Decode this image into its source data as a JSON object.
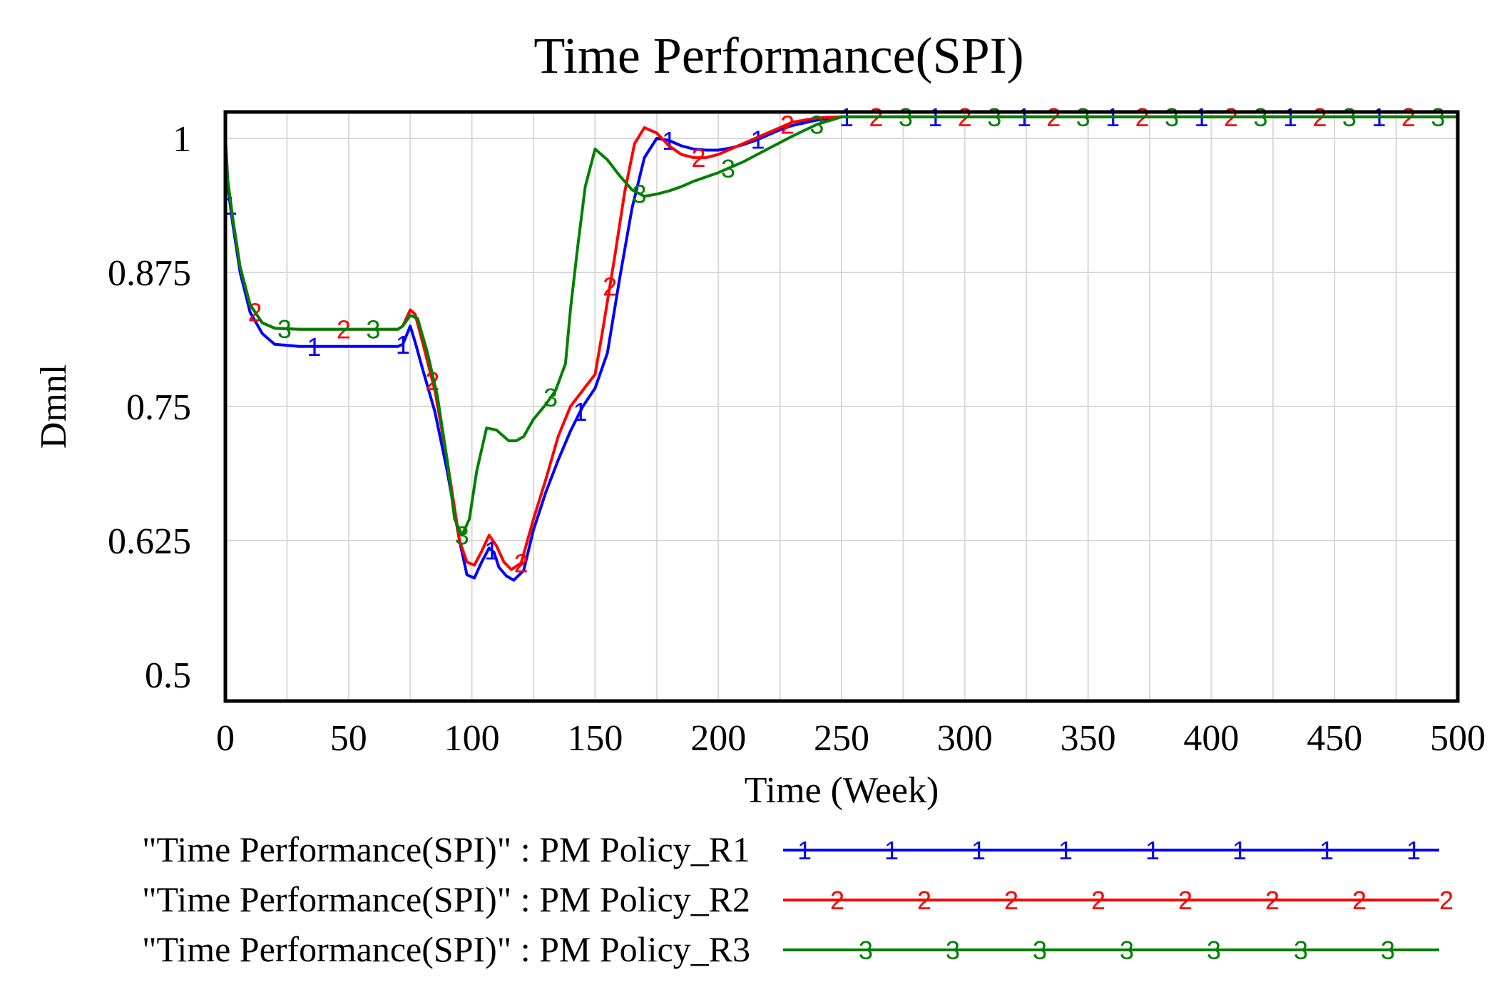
{
  "chart_data": {
    "type": "line",
    "title": "Time Performance(SPI)",
    "xlabel": "Time (Week)",
    "ylabel": "Dmnl",
    "xlim": [
      0,
      500
    ],
    "ylim": [
      0.5,
      1.0
    ],
    "x_ticks": [
      0,
      50,
      100,
      150,
      200,
      250,
      300,
      350,
      400,
      450,
      500
    ],
    "y_ticks": [
      0.5,
      0.625,
      0.75,
      0.875,
      1
    ],
    "y_tick_labels": [
      "0.5",
      "0.625",
      "0.75",
      "0.875",
      "1"
    ],
    "grid": true,
    "legend_position": "bottom",
    "series": [
      {
        "name": "\"Time Performance(SPI)\" : PM Policy_R1",
        "marker": "1",
        "color": "#0000ff",
        "points": [
          [
            0,
            1.0
          ],
          [
            1,
            0.955
          ],
          [
            3,
            0.92
          ],
          [
            6,
            0.875
          ],
          [
            10,
            0.838
          ],
          [
            15,
            0.818
          ],
          [
            20,
            0.808
          ],
          [
            30,
            0.806
          ],
          [
            50,
            0.806
          ],
          [
            70,
            0.806
          ],
          [
            72,
            0.808
          ],
          [
            75,
            0.825
          ],
          [
            77,
            0.81
          ],
          [
            80,
            0.785
          ],
          [
            85,
            0.745
          ],
          [
            90,
            0.69
          ],
          [
            95,
            0.625
          ],
          [
            98,
            0.593
          ],
          [
            101,
            0.59
          ],
          [
            104,
            0.605
          ],
          [
            107,
            0.618
          ],
          [
            109,
            0.614
          ],
          [
            111,
            0.6
          ],
          [
            114,
            0.592
          ],
          [
            117,
            0.588
          ],
          [
            121,
            0.597
          ],
          [
            125,
            0.635
          ],
          [
            130,
            0.67
          ],
          [
            135,
            0.7
          ],
          [
            140,
            0.727
          ],
          [
            145,
            0.75
          ],
          [
            150,
            0.767
          ],
          [
            155,
            0.8
          ],
          [
            160,
            0.87
          ],
          [
            165,
            0.935
          ],
          [
            170,
            0.982
          ],
          [
            175,
            1.0
          ],
          [
            180,
            0.998
          ],
          [
            185,
            0.993
          ],
          [
            190,
            0.99
          ],
          [
            195,
            0.989
          ],
          [
            200,
            0.989
          ],
          [
            205,
            0.991
          ],
          [
            210,
            0.994
          ],
          [
            215,
            0.998
          ],
          [
            220,
            1.003
          ],
          [
            225,
            1.008
          ],
          [
            230,
            1.012
          ],
          [
            240,
            1.017
          ],
          [
            250,
            1.02
          ],
          [
            500,
            1.02
          ]
        ]
      },
      {
        "name": "\"Time Performance(SPI)\" : PM Policy_R2",
        "marker": "2",
        "color": "#ff0000",
        "points": [
          [
            0,
            1.0
          ],
          [
            1,
            0.96
          ],
          [
            3,
            0.925
          ],
          [
            6,
            0.88
          ],
          [
            10,
            0.845
          ],
          [
            15,
            0.828
          ],
          [
            20,
            0.823
          ],
          [
            30,
            0.822
          ],
          [
            50,
            0.822
          ],
          [
            70,
            0.822
          ],
          [
            72,
            0.825
          ],
          [
            75,
            0.84
          ],
          [
            77,
            0.836
          ],
          [
            80,
            0.81
          ],
          [
            85,
            0.765
          ],
          [
            90,
            0.7
          ],
          [
            95,
            0.625
          ],
          [
            98,
            0.605
          ],
          [
            101,
            0.602
          ],
          [
            104,
            0.615
          ],
          [
            107,
            0.63
          ],
          [
            110,
            0.62
          ],
          [
            113,
            0.605
          ],
          [
            116,
            0.598
          ],
          [
            120,
            0.604
          ],
          [
            125,
            0.645
          ],
          [
            130,
            0.682
          ],
          [
            135,
            0.722
          ],
          [
            140,
            0.75
          ],
          [
            145,
            0.765
          ],
          [
            150,
            0.78
          ],
          [
            153,
            0.82
          ],
          [
            158,
            0.89
          ],
          [
            162,
            0.95
          ],
          [
            166,
            0.995
          ],
          [
            170,
            1.01
          ],
          [
            175,
            1.005
          ],
          [
            180,
            0.993
          ],
          [
            185,
            0.985
          ],
          [
            190,
            0.982
          ],
          [
            195,
            0.982
          ],
          [
            200,
            0.985
          ],
          [
            205,
            0.99
          ],
          [
            210,
            0.995
          ],
          [
            215,
            1.0
          ],
          [
            220,
            1.005
          ],
          [
            225,
            1.01
          ],
          [
            230,
            1.015
          ],
          [
            240,
            1.019
          ],
          [
            250,
            1.02
          ],
          [
            500,
            1.02
          ]
        ]
      },
      {
        "name": "\"Time Performance(SPI)\" : PM Policy_R3",
        "marker": "3",
        "color": "#008000",
        "points": [
          [
            0,
            1.0
          ],
          [
            1,
            0.96
          ],
          [
            3,
            0.925
          ],
          [
            6,
            0.88
          ],
          [
            10,
            0.845
          ],
          [
            15,
            0.828
          ],
          [
            20,
            0.823
          ],
          [
            30,
            0.822
          ],
          [
            50,
            0.822
          ],
          [
            70,
            0.822
          ],
          [
            72,
            0.825
          ],
          [
            75,
            0.835
          ],
          [
            78,
            0.832
          ],
          [
            82,
            0.8
          ],
          [
            86,
            0.76
          ],
          [
            90,
            0.7
          ],
          [
            93,
            0.645
          ],
          [
            96,
            0.63
          ],
          [
            99,
            0.645
          ],
          [
            102,
            0.69
          ],
          [
            106,
            0.73
          ],
          [
            110,
            0.728
          ],
          [
            115,
            0.718
          ],
          [
            118,
            0.718
          ],
          [
            121,
            0.722
          ],
          [
            125,
            0.738
          ],
          [
            130,
            0.752
          ],
          [
            134,
            0.765
          ],
          [
            138,
            0.79
          ],
          [
            140,
            0.84
          ],
          [
            143,
            0.9
          ],
          [
            146,
            0.955
          ],
          [
            150,
            0.99
          ],
          [
            155,
            0.98
          ],
          [
            160,
            0.965
          ],
          [
            165,
            0.952
          ],
          [
            170,
            0.946
          ],
          [
            175,
            0.948
          ],
          [
            180,
            0.951
          ],
          [
            185,
            0.955
          ],
          [
            190,
            0.96
          ],
          [
            200,
            0.968
          ],
          [
            210,
            0.978
          ],
          [
            220,
            0.99
          ],
          [
            230,
            1.002
          ],
          [
            240,
            1.013
          ],
          [
            250,
            1.02
          ],
          [
            500,
            1.02
          ]
        ]
      }
    ]
  }
}
